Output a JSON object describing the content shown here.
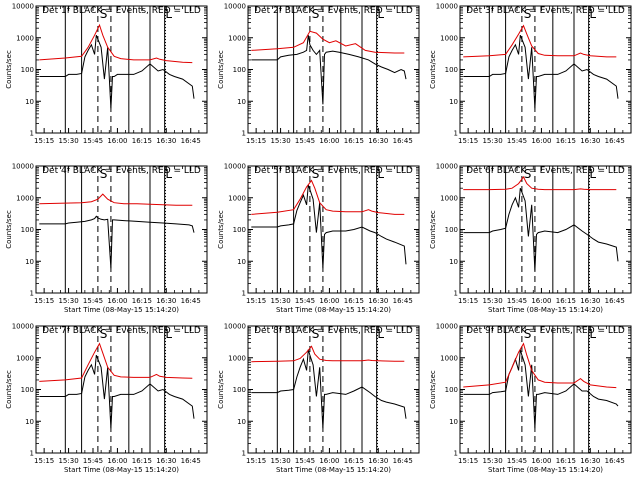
{
  "colors": {
    "events": "#000000",
    "lld": "#e00000",
    "axis": "#000000",
    "background": "#ffffff"
  },
  "chart_data": {
    "type": "line",
    "x_tick_labels": [
      "15:15",
      "15:30",
      "15:45",
      "16:00",
      "16:15",
      "16:30",
      "16:45"
    ],
    "x_ticks_minutes": [
      15,
      30,
      45,
      60,
      75,
      90,
      105
    ],
    "x_range_minutes": [
      10,
      115
    ],
    "x_unit": "minutes after 15:00 UT",
    "xlabel": "Start Time (08-May-15 15:14:20)",
    "ylabel": "Counts/sec",
    "y_scale": "log",
    "ylim": [
      1,
      10000
    ],
    "y_tick_labels": [
      "1",
      "10",
      "100",
      "1000",
      "10000"
    ],
    "solid_vlines_minutes": [
      28,
      38,
      67,
      80,
      89
    ],
    "dashed_vlines_minutes": [
      48,
      56
    ],
    "dotted_vlines_minutes": [
      89.5
    ],
    "segment_labels": [
      "S",
      "L"
    ],
    "segment_label_minutes": [
      51.5,
      91.5
    ],
    "panels": [
      {
        "title": "Det 1f BLACK = Events, RED = LLD",
        "show_xlabel": false,
        "series": [
          {
            "name": "Events",
            "x": [
              12,
              28,
              30,
              35,
              38,
              40,
              42,
              44,
              46,
              47,
              48,
              50,
              52,
              54,
              56,
              57,
              58,
              60,
              70,
              75,
              80,
              85,
              88,
              92,
              95,
              100,
              106,
              107
            ],
            "y": [
              60,
              60,
              70,
              70,
              75,
              250,
              400,
              600,
              300,
              1200,
              900,
              500,
              50,
              500,
              6,
              60,
              60,
              70,
              70,
              90,
              150,
              90,
              100,
              70,
              60,
              50,
              30,
              12
            ]
          },
          {
            "name": "LLD",
            "x": [
              12,
              28,
              38,
              42,
              46,
              49,
              51,
              54,
              58,
              62,
              70,
              80,
              84,
              86,
              90,
              100,
              106
            ],
            "y": [
              200,
              230,
              260,
              500,
              1200,
              2500,
              1200,
              500,
              260,
              220,
              200,
              200,
              230,
              210,
              190,
              170,
              165
            ]
          }
        ]
      },
      {
        "title": "Det 2f BLACK = Events, RED = LLD",
        "show_xlabel": false,
        "series": [
          {
            "name": "Events",
            "x": [
              12,
              28,
              30,
              35,
              40,
              44,
              46,
              47,
              48,
              50,
              52,
              54,
              56,
              57,
              58,
              62,
              66,
              72,
              78,
              84,
              88,
              92,
              96,
              100,
              104,
              106,
              107
            ],
            "y": [
              200,
              200,
              250,
              280,
              300,
              350,
              400,
              1200,
              600,
              400,
              300,
              400,
              8,
              300,
              350,
              380,
              350,
              300,
              250,
              200,
              150,
              120,
              100,
              80,
              100,
              90,
              50
            ]
          },
          {
            "name": "LLD",
            "x": [
              12,
              28,
              38,
              44,
              48,
              52,
              56,
              60,
              64,
              70,
              76,
              82,
              88,
              94,
              100,
              106
            ],
            "y": [
              400,
              450,
              500,
              700,
              1600,
              1400,
              900,
              700,
              800,
              550,
              650,
              400,
              350,
              340,
              330,
              330
            ]
          }
        ]
      },
      {
        "title": "Det 3f BLACK = Events, RED = LLD",
        "show_xlabel": false,
        "series": [
          {
            "name": "Events",
            "x": [
              12,
              28,
              30,
              35,
              38,
              40,
              42,
              44,
              46,
              47,
              48,
              50,
              52,
              54,
              56,
              57,
              58,
              62,
              70,
              75,
              80,
              85,
              88,
              92,
              95,
              100,
              106,
              107
            ],
            "y": [
              60,
              60,
              70,
              70,
              75,
              250,
              400,
              600,
              300,
              1200,
              900,
              500,
              50,
              500,
              6,
              60,
              60,
              70,
              70,
              90,
              150,
              90,
              100,
              70,
              60,
              50,
              30,
              12
            ]
          },
          {
            "name": "LLD",
            "x": [
              12,
              28,
              38,
              42,
              46,
              49,
              51,
              54,
              58,
              62,
              70,
              80,
              84,
              86,
              90,
              100,
              106
            ],
            "y": [
              250,
              270,
              300,
              600,
              1300,
              2400,
              1300,
              550,
              320,
              280,
              270,
              270,
              330,
              300,
              270,
              250,
              250
            ]
          }
        ]
      },
      {
        "title": "Det 4f BLACK = Events, RED = LLD",
        "show_xlabel": true,
        "series": [
          {
            "name": "Events",
            "x": [
              12,
              28,
              30,
              35,
              40,
              44,
              46,
              47,
              48,
              50,
              52,
              54,
              56,
              57,
              58,
              64,
              72,
              80,
              88,
              96,
              104,
              106,
              107
            ],
            "y": [
              150,
              150,
              160,
              170,
              180,
              200,
              220,
              260,
              230,
              210,
              200,
              210,
              6,
              200,
              200,
              190,
              180,
              170,
              160,
              150,
              140,
              130,
              80
            ]
          },
          {
            "name": "LLD",
            "x": [
              12,
              28,
              38,
              44,
              48,
              51,
              54,
              58,
              64,
              72,
              80,
              88,
              96,
              106
            ],
            "y": [
              650,
              680,
              700,
              750,
              900,
              1300,
              900,
              700,
              650,
              650,
              620,
              600,
              580,
              580
            ]
          }
        ]
      },
      {
        "title": "Det 5f BLACK = Events, RED = LLD",
        "show_xlabel": true,
        "series": [
          {
            "name": "Events",
            "x": [
              12,
              28,
              30,
              35,
              38,
              40,
              42,
              44,
              46,
              47,
              48,
              50,
              52,
              54,
              56,
              57,
              58,
              62,
              70,
              75,
              80,
              85,
              88,
              92,
              95,
              100,
              106,
              107
            ],
            "y": [
              120,
              120,
              130,
              140,
              150,
              400,
              700,
              1200,
              600,
              2500,
              1800,
              900,
              80,
              700,
              6,
              70,
              80,
              90,
              90,
              100,
              120,
              90,
              80,
              60,
              50,
              40,
              30,
              8
            ]
          },
          {
            "name": "LLD",
            "x": [
              12,
              28,
              38,
              42,
              46,
              49,
              51,
              54,
              58,
              62,
              70,
              80,
              84,
              86,
              90,
              100,
              106
            ],
            "y": [
              300,
              350,
              420,
              900,
              2200,
              3500,
              2000,
              700,
              420,
              380,
              360,
              360,
              420,
              380,
              340,
              300,
              300
            ]
          }
        ]
      },
      {
        "title": "Det 6f BLACK = Events, RED = LLD",
        "show_xlabel": true,
        "series": [
          {
            "name": "Events",
            "x": [
              12,
              28,
              30,
              35,
              38,
              40,
              42,
              44,
              46,
              47,
              48,
              50,
              52,
              54,
              56,
              57,
              58,
              62,
              70,
              75,
              80,
              85,
              88,
              92,
              95,
              100,
              106,
              107
            ],
            "y": [
              80,
              80,
              90,
              100,
              110,
              300,
              600,
              1000,
              500,
              2000,
              1500,
              800,
              60,
              600,
              5,
              70,
              80,
              90,
              80,
              100,
              140,
              90,
              70,
              50,
              40,
              35,
              28,
              10
            ]
          },
          {
            "name": "LLD",
            "x": [
              12,
              28,
              38,
              42,
              46,
              49,
              51,
              54,
              58,
              62,
              70,
              80,
              84,
              86,
              90,
              100,
              106
            ],
            "y": [
              1800,
              1800,
              1850,
              2000,
              2800,
              4500,
              2800,
              2000,
              1850,
              1800,
              1800,
              1800,
              1900,
              1850,
              1800,
              1800,
              1800
            ]
          }
        ]
      },
      {
        "title": "Det 7f BLACK = Events, RED = LLD",
        "show_xlabel": true,
        "series": [
          {
            "name": "Events",
            "x": [
              12,
              28,
              30,
              35,
              38,
              40,
              42,
              44,
              46,
              47,
              48,
              50,
              52,
              54,
              56,
              57,
              58,
              62,
              70,
              75,
              80,
              85,
              88,
              92,
              95,
              100,
              106,
              107
            ],
            "y": [
              60,
              60,
              70,
              70,
              75,
              250,
              400,
              600,
              300,
              1200,
              900,
              500,
              50,
              500,
              6,
              60,
              60,
              70,
              70,
              90,
              150,
              90,
              100,
              70,
              60,
              50,
              30,
              12
            ]
          },
          {
            "name": "LLD",
            "x": [
              12,
              28,
              38,
              42,
              46,
              49,
              51,
              54,
              58,
              62,
              70,
              80,
              84,
              86,
              90,
              100,
              106
            ],
            "y": [
              180,
              200,
              230,
              600,
              1500,
              2800,
              1400,
              500,
              280,
              250,
              240,
              240,
              300,
              260,
              240,
              230,
              225
            ]
          }
        ]
      },
      {
        "title": "Det 8f BLACK = Events, RED = LLD",
        "show_xlabel": true,
        "series": [
          {
            "name": "Events",
            "x": [
              12,
              28,
              30,
              35,
              38,
              40,
              42,
              44,
              46,
              47,
              48,
              50,
              52,
              54,
              56,
              57,
              58,
              62,
              70,
              75,
              80,
              85,
              88,
              92,
              95,
              100,
              106,
              107
            ],
            "y": [
              80,
              80,
              90,
              95,
              100,
              250,
              500,
              900,
              400,
              1800,
              1200,
              600,
              60,
              500,
              6,
              70,
              70,
              80,
              70,
              90,
              120,
              80,
              60,
              45,
              40,
              35,
              28,
              12
            ]
          },
          {
            "name": "LLD",
            "x": [
              12,
              28,
              38,
              42,
              46,
              49,
              51,
              54,
              58,
              62,
              70,
              80,
              84,
              86,
              90,
              100,
              106
            ],
            "y": [
              750,
              780,
              800,
              950,
              1500,
              2300,
              1300,
              900,
              820,
              800,
              800,
              800,
              850,
              820,
              800,
              780,
              780
            ]
          }
        ]
      },
      {
        "title": "Det 9f BLACK = Events, RED = LLD",
        "show_xlabel": true,
        "series": [
          {
            "name": "Events",
            "x": [
              12,
              28,
              30,
              35,
              38,
              40,
              42,
              44,
              46,
              47,
              48,
              50,
              52,
              54,
              56,
              57,
              58,
              62,
              70,
              75,
              80,
              85,
              88,
              92,
              95,
              100,
              106,
              107
            ],
            "y": [
              70,
              70,
              80,
              85,
              90,
              300,
              500,
              900,
              400,
              1800,
              1200,
              600,
              60,
              600,
              6,
              70,
              70,
              80,
              70,
              90,
              150,
              90,
              90,
              60,
              50,
              45,
              35,
              30
            ]
          },
          {
            "name": "LLD",
            "x": [
              12,
              28,
              38,
              42,
              46,
              49,
              51,
              54,
              58,
              62,
              70,
              80,
              84,
              86,
              90,
              100,
              106
            ],
            "y": [
              120,
              140,
              170,
              500,
              1500,
              2800,
              1200,
              400,
              200,
              170,
              160,
              160,
              220,
              180,
              140,
              120,
              115
            ]
          }
        ]
      }
    ]
  }
}
